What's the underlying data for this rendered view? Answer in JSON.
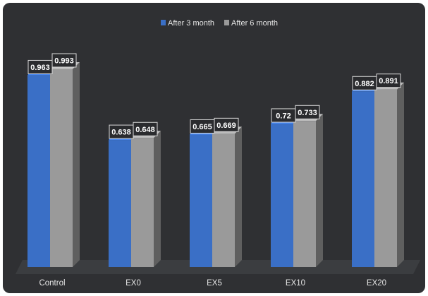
{
  "chart_data": {
    "type": "bar",
    "categories": [
      "Control",
      "EX0",
      "EX5",
      "EX10",
      "EX20"
    ],
    "series": [
      {
        "name": "After 3 month",
        "values": [
          0.963,
          0.638,
          0.665,
          0.72,
          0.882
        ],
        "color": "#3a6fc6"
      },
      {
        "name": "After 6 month",
        "values": [
          0.993,
          0.648,
          0.669,
          0.733,
          0.891
        ],
        "color": "#9a9a9a"
      }
    ],
    "data_labels": [
      [
        "0.963",
        "0.638",
        "0.665",
        "0.72",
        "0.882"
      ],
      [
        "0.993",
        "0.648",
        "0.669",
        "0.733",
        "0.891"
      ]
    ],
    "legend_position": "top",
    "style": "3d-clustered-column",
    "grid": false,
    "ylim": [
      0,
      1.1
    ],
    "colors": {
      "background": "#2f3033",
      "floor": "#3b3d40",
      "text": "#e6e6e6",
      "label_box": "#2a2b2e",
      "label_border": "#d9d9d9"
    }
  }
}
